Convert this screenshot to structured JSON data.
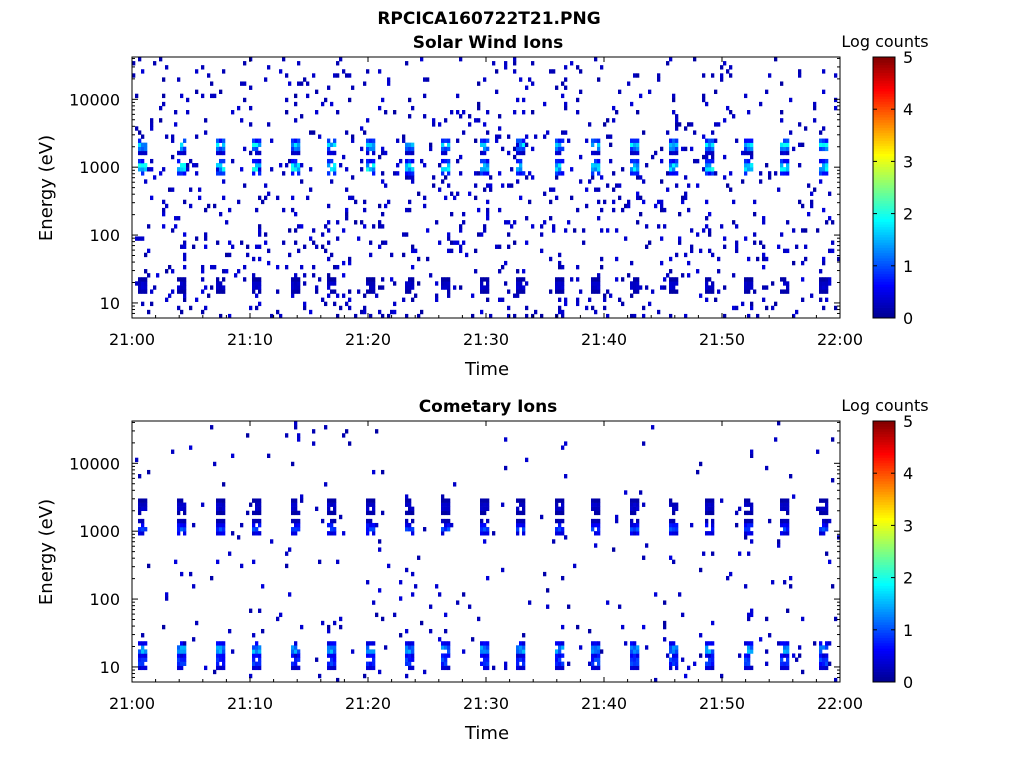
{
  "figure_title": "RPCICA160722T21.PNG",
  "colormap": [
    "#00008f",
    "#0000ff",
    "#0080ff",
    "#00ffff",
    "#80ff80",
    "#ffff00",
    "#ff8000",
    "#ff0000",
    "#800000"
  ],
  "chart_data": [
    {
      "type": "heatmap",
      "title": "Solar Wind Ions",
      "xlabel": "Time",
      "ylabel": "Energy (eV)",
      "x_ticks": [
        "21:00",
        "21:10",
        "21:20",
        "21:30",
        "21:40",
        "21:50",
        "22:00"
      ],
      "y_ticks": [
        "10",
        "100",
        "1000",
        "10000"
      ],
      "y_tick_values": [
        10,
        100,
        1000,
        10000
      ],
      "y_scale": "log",
      "ylim": [
        6,
        42000
      ],
      "colorbar": {
        "label": "Log counts",
        "range": [
          0,
          5
        ],
        "ticks": [
          "0",
          "1",
          "2",
          "3",
          "4",
          "5"
        ]
      },
      "sweep_period_min": 3.2,
      "sweep_start_min": 1,
      "peaks": [
        {
          "energy_ev": 1000,
          "log_counts": 2.6
        },
        {
          "energy_ev": 2100,
          "log_counts": 2.1
        },
        {
          "energy_ev": 18,
          "log_counts": 0.5
        }
      ],
      "background_density": 0.075
    },
    {
      "type": "heatmap",
      "title": "Cometary Ions",
      "xlabel": "Time",
      "ylabel": "Energy (eV)",
      "x_ticks": [
        "21:00",
        "21:10",
        "21:20",
        "21:30",
        "21:40",
        "21:50",
        "22:00"
      ],
      "y_ticks": [
        "10",
        "100",
        "1000",
        "10000"
      ],
      "y_tick_values": [
        10,
        100,
        1000,
        10000
      ],
      "y_scale": "log",
      "ylim": [
        6,
        42000
      ],
      "colorbar": {
        "label": "Log counts",
        "range": [
          0,
          5
        ],
        "ticks": [
          "0",
          "1",
          "2",
          "3",
          "4",
          "5"
        ]
      },
      "sweep_period_min": 3.2,
      "sweep_start_min": 1,
      "peaks": [
        {
          "energy_ev": 1100,
          "log_counts": 1.2
        },
        {
          "energy_ev": 2300,
          "log_counts": 0.5
        },
        {
          "energy_ev": 18,
          "log_counts": 2.0
        },
        {
          "energy_ev": 12,
          "log_counts": 1.3
        }
      ],
      "background_density": 0.02
    }
  ]
}
